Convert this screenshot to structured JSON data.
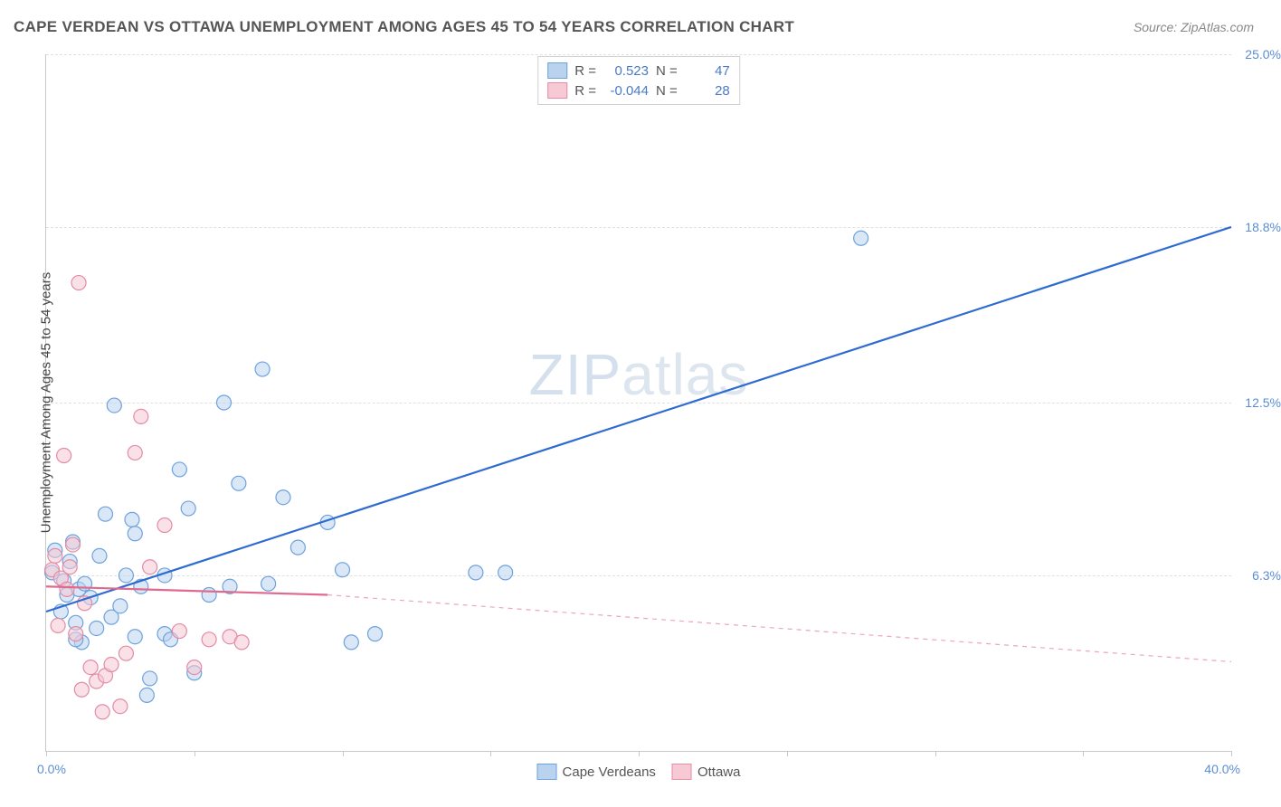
{
  "title": "CAPE VERDEAN VS OTTAWA UNEMPLOYMENT AMONG AGES 45 TO 54 YEARS CORRELATION CHART",
  "source": "Source: ZipAtlas.com",
  "y_axis_label": "Unemployment Among Ages 45 to 54 years",
  "watermark": {
    "part1": "ZIP",
    "part2": "atlas"
  },
  "chart": {
    "type": "scatter",
    "background_color": "#ffffff",
    "grid_color": "#e0e0e0",
    "axis_color": "#c9c9c9",
    "label_color": "#5b8dd6",
    "xlim": [
      0,
      40
    ],
    "ylim": [
      0,
      25
    ],
    "x_ticks": [
      0,
      5,
      10,
      15,
      20,
      25,
      30,
      35,
      40
    ],
    "y_ticks": [
      6.3,
      12.5,
      18.8,
      25.0
    ],
    "x_min_label": "0.0%",
    "x_max_label": "40.0%",
    "y_tick_labels": [
      "6.3%",
      "12.5%",
      "18.8%",
      "25.0%"
    ],
    "marker_radius": 8,
    "marker_opacity": 0.55,
    "line_width": 2.2,
    "series": [
      {
        "name": "Cape Verdeans",
        "color_fill": "#b9d3ef",
        "color_stroke": "#6ea2dd",
        "line_color": "#2e6bd1",
        "r": "0.523",
        "n": "47",
        "trend": {
          "x1": 0,
          "y1": 5.0,
          "x2": 40,
          "y2": 18.8,
          "dashed_from": 40
        },
        "points": [
          [
            0.2,
            6.4
          ],
          [
            0.3,
            7.2
          ],
          [
            0.5,
            5.0
          ],
          [
            0.6,
            6.1
          ],
          [
            0.7,
            5.6
          ],
          [
            0.8,
            6.8
          ],
          [
            0.9,
            7.5
          ],
          [
            1.0,
            4.6
          ],
          [
            1.1,
            5.8
          ],
          [
            1.2,
            3.9
          ],
          [
            1.3,
            6.0
          ],
          [
            1.5,
            5.5
          ],
          [
            1.7,
            4.4
          ],
          [
            1.8,
            7.0
          ],
          [
            2.0,
            8.5
          ],
          [
            2.2,
            4.8
          ],
          [
            2.3,
            12.4
          ],
          [
            2.5,
            5.2
          ],
          [
            2.7,
            6.3
          ],
          [
            2.9,
            8.3
          ],
          [
            3.0,
            4.1
          ],
          [
            3.2,
            5.9
          ],
          [
            3.4,
            2.0
          ],
          [
            3.5,
            2.6
          ],
          [
            4.0,
            4.2
          ],
          [
            4.2,
            4.0
          ],
          [
            4.5,
            10.1
          ],
          [
            4.8,
            8.7
          ],
          [
            5.0,
            2.8
          ],
          [
            5.5,
            5.6
          ],
          [
            6.0,
            12.5
          ],
          [
            6.2,
            5.9
          ],
          [
            6.5,
            9.6
          ],
          [
            7.3,
            13.7
          ],
          [
            7.5,
            6.0
          ],
          [
            8.0,
            9.1
          ],
          [
            8.5,
            7.3
          ],
          [
            9.5,
            8.2
          ],
          [
            10.0,
            6.5
          ],
          [
            10.3,
            3.9
          ],
          [
            11.1,
            4.2
          ],
          [
            14.5,
            6.4
          ],
          [
            15.5,
            6.4
          ],
          [
            27.5,
            18.4
          ],
          [
            4.0,
            6.3
          ],
          [
            3.0,
            7.8
          ],
          [
            1.0,
            4.0
          ]
        ]
      },
      {
        "name": "Ottawa",
        "color_fill": "#f6c9d4",
        "color_stroke": "#e48ba5",
        "line_color": "#e06a8d",
        "r": "-0.044",
        "n": "28",
        "trend": {
          "x1": 0,
          "y1": 5.9,
          "x2": 9.5,
          "y2": 5.6,
          "dashed_to_x": 40,
          "dashed_to_y": 3.2
        },
        "points": [
          [
            0.2,
            6.5
          ],
          [
            0.3,
            7.0
          ],
          [
            0.4,
            4.5
          ],
          [
            0.5,
            6.2
          ],
          [
            0.6,
            10.6
          ],
          [
            0.7,
            5.8
          ],
          [
            0.8,
            6.6
          ],
          [
            0.9,
            7.4
          ],
          [
            1.0,
            4.2
          ],
          [
            1.1,
            16.8
          ],
          [
            1.2,
            2.2
          ],
          [
            1.3,
            5.3
          ],
          [
            1.5,
            3.0
          ],
          [
            1.7,
            2.5
          ],
          [
            1.9,
            1.4
          ],
          [
            2.0,
            2.7
          ],
          [
            2.2,
            3.1
          ],
          [
            2.5,
            1.6
          ],
          [
            2.7,
            3.5
          ],
          [
            3.0,
            10.7
          ],
          [
            3.2,
            12.0
          ],
          [
            3.5,
            6.6
          ],
          [
            4.0,
            8.1
          ],
          [
            4.5,
            4.3
          ],
          [
            5.0,
            3.0
          ],
          [
            5.5,
            4.0
          ],
          [
            6.2,
            4.1
          ],
          [
            6.6,
            3.9
          ]
        ]
      }
    ]
  },
  "top_legend": {
    "r_label": "R =",
    "n_label": "N ="
  },
  "bottom_legend": {
    "items": [
      "Cape Verdeans",
      "Ottawa"
    ]
  }
}
